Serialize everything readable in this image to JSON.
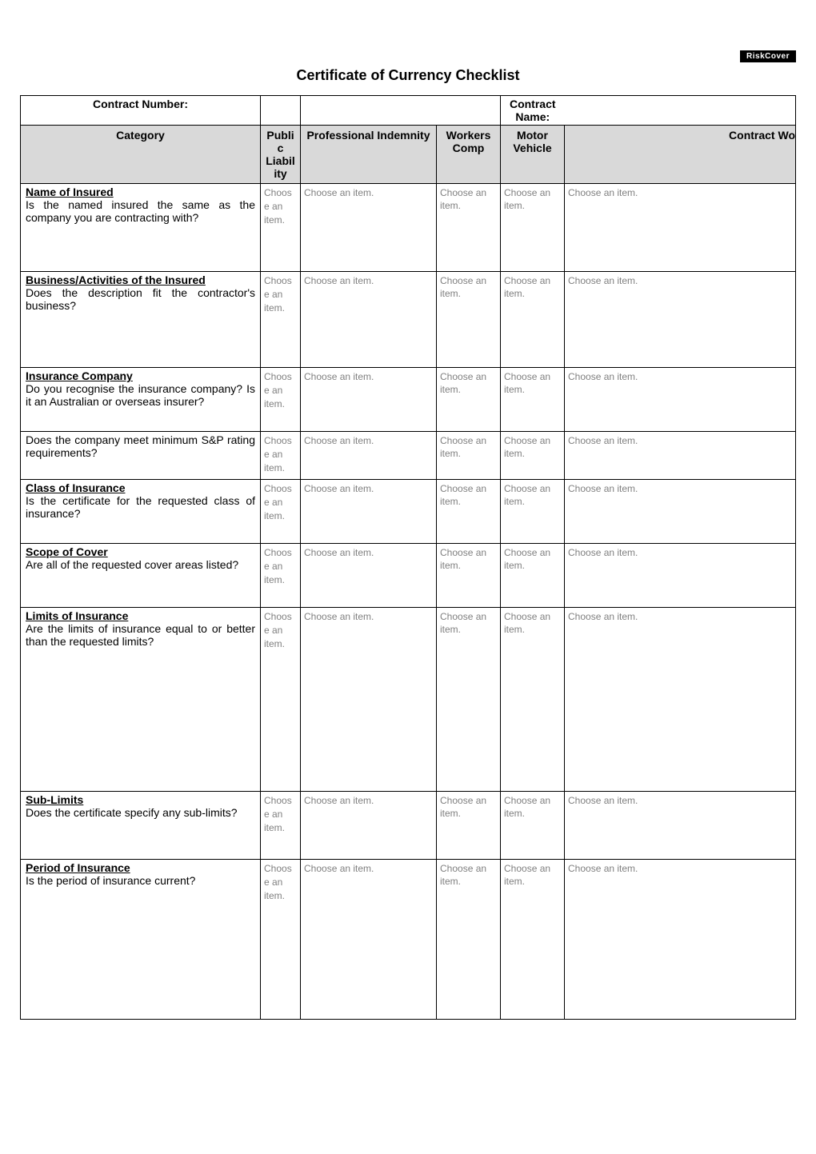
{
  "logo_text": "RiskCover",
  "title": "Certificate of Currency Checklist",
  "top_row": {
    "contract_number_label": "Contract Number:",
    "contract_name_label": "Contract Name:"
  },
  "headers": {
    "category": "Category",
    "public_liability": "Publi c Liabil ity",
    "professional_indemnity": "Professional Indemnity",
    "workers_comp": "Workers Comp",
    "motor_vehicle": "Motor Vehicle",
    "contract_works": "Contract Wo"
  },
  "placeholder_narrow": "Choos e an item.",
  "placeholder": "Choose an item.",
  "rows": [
    {
      "title": "Name of Insured",
      "body": "Is the named insured the same as the company you are contracting with?",
      "height": "h-tall-1"
    },
    {
      "title": "Business/Activities of the Insured",
      "body": "Does the description fit the contractor's business?",
      "height": "h-tall-2"
    },
    {
      "title": "Insurance Company",
      "body": "Do you recognise the insurance company? Is it an Australian or overseas insurer?",
      "height": "h-med"
    },
    {
      "title": "",
      "body": "Does the company meet minimum S&P rating requirements?",
      "height": "h-small"
    },
    {
      "title": "Class of Insurance",
      "body": "Is the certificate for the requested class of insurance?",
      "height": "h-med"
    },
    {
      "title": "Scope of Cover",
      "body": "Are all of the requested cover areas listed?",
      "height": "h-med"
    },
    {
      "title": "Limits of Insurance",
      "body": "Are the limits of insurance equal to or better than the requested limits?",
      "height": "h-limits"
    },
    {
      "title": "Sub-Limits",
      "body": "Does the certificate specify any sub-limits?",
      "height": "h-sub"
    },
    {
      "title": "Period of Insurance",
      "body": "Is the period of insurance current?",
      "height": "h-period"
    }
  ],
  "colors": {
    "header_bg": "#d9d9d9",
    "placeholder_text": "#808080",
    "border": "#000000",
    "background": "#ffffff",
    "text": "#000000",
    "logo_bg": "#000000",
    "logo_fg": "#ffffff"
  },
  "typography": {
    "title_fontsize": 18,
    "body_fontsize": 14,
    "placeholder_fontsize": 12,
    "font_family": "Arial"
  }
}
